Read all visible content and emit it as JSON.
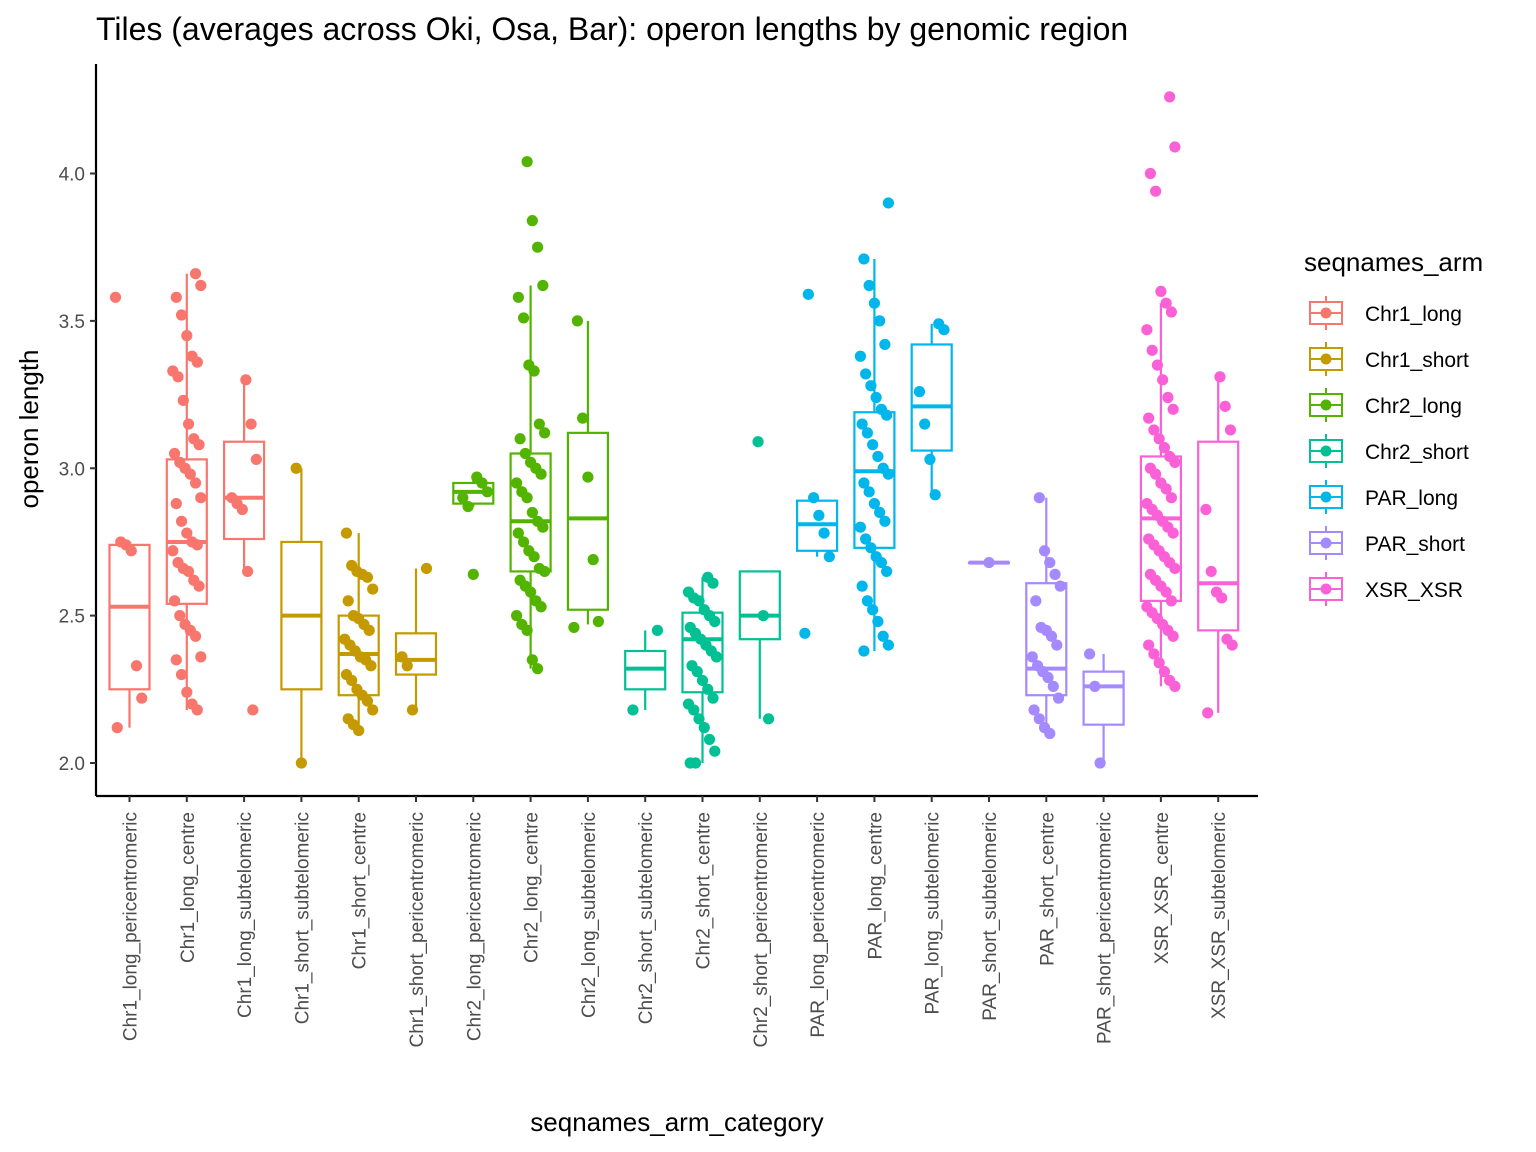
{
  "chart_data": {
    "type": "box",
    "title": "Tiles (averages across Oki, Osa, Bar): operon lengths by genomic region",
    "xlabel": "seqnames_arm_category",
    "ylabel": "operon length",
    "ylim": [
      1.89,
      4.36
    ],
    "yticks": [
      "2.0",
      "2.5",
      "3.0",
      "3.5",
      "4.0"
    ],
    "grid": false,
    "legend": {
      "title": "seqnames_arm",
      "position": "right",
      "entries": [
        {
          "name": "Chr1_long",
          "color": "#F8766D"
        },
        {
          "name": "Chr1_short",
          "color": "#C49A00"
        },
        {
          "name": "Chr2_long",
          "color": "#53B400"
        },
        {
          "name": "Chr2_short",
          "color": "#00C094"
        },
        {
          "name": "PAR_long",
          "color": "#00B6EB"
        },
        {
          "name": "PAR_short",
          "color": "#A58AFF"
        },
        {
          "name": "XSR_XSR",
          "color": "#FB61D7"
        }
      ]
    },
    "categories": [
      {
        "label": "Chr1_long_pericentromeric",
        "group": "Chr1_long",
        "box": [
          2.25,
          2.53,
          2.74
        ],
        "whisker": [
          2.12,
          2.75
        ],
        "points": [
          3.58,
          2.75,
          2.74,
          2.72,
          2.33,
          2.22,
          2.12
        ]
      },
      {
        "label": "Chr1_long_centre",
        "group": "Chr1_long",
        "box": [
          2.54,
          2.75,
          3.03
        ],
        "whisker": [
          2.18,
          3.66
        ],
        "points": [
          3.66,
          3.62,
          3.58,
          3.52,
          3.45,
          3.38,
          3.36,
          3.33,
          3.31,
          3.23,
          3.15,
          3.1,
          3.08,
          3.05,
          3.02,
          3.0,
          2.98,
          2.95,
          2.9,
          2.88,
          2.82,
          2.78,
          2.75,
          2.74,
          2.72,
          2.68,
          2.66,
          2.65,
          2.62,
          2.6,
          2.55,
          2.5,
          2.47,
          2.45,
          2.43,
          2.36,
          2.35,
          2.3,
          2.24,
          2.2,
          2.18
        ]
      },
      {
        "label": "Chr1_long_subtelomeric",
        "group": "Chr1_long",
        "box": [
          2.76,
          2.9,
          3.09
        ],
        "whisker": [
          2.64,
          3.3
        ],
        "points": [
          3.3,
          3.15,
          3.03,
          2.9,
          2.88,
          2.86,
          2.65,
          2.18
        ]
      },
      {
        "label": "Chr1_short_subtelomeric",
        "group": "Chr1_short",
        "box": [
          2.25,
          2.5,
          2.75
        ],
        "whisker": [
          2.0,
          3.0
        ],
        "points": [
          3.0,
          2.0
        ]
      },
      {
        "label": "Chr1_short_centre",
        "group": "Chr1_short",
        "box": [
          2.23,
          2.37,
          2.5
        ],
        "whisker": [
          2.11,
          2.78
        ],
        "points": [
          2.78,
          2.67,
          2.65,
          2.64,
          2.63,
          2.59,
          2.55,
          2.5,
          2.49,
          2.47,
          2.45,
          2.42,
          2.4,
          2.38,
          2.36,
          2.35,
          2.33,
          2.3,
          2.28,
          2.25,
          2.23,
          2.21,
          2.18,
          2.15,
          2.13,
          2.11
        ]
      },
      {
        "label": "Chr1_short_pericentromeric",
        "group": "Chr1_short",
        "box": [
          2.3,
          2.35,
          2.44
        ],
        "whisker": [
          2.18,
          2.66
        ],
        "points": [
          2.66,
          2.36,
          2.33,
          2.18
        ]
      },
      {
        "label": "Chr2_long_pericentromeric",
        "group": "Chr2_long",
        "box": [
          2.88,
          2.92,
          2.95
        ],
        "whisker": [
          2.87,
          2.97
        ],
        "points": [
          2.97,
          2.95,
          2.92,
          2.9,
          2.87,
          2.64
        ]
      },
      {
        "label": "Chr2_long_centre",
        "group": "Chr2_long",
        "box": [
          2.65,
          2.82,
          3.05
        ],
        "whisker": [
          2.32,
          3.62
        ],
        "points": [
          4.04,
          3.84,
          3.75,
          3.62,
          3.58,
          3.51,
          3.35,
          3.33,
          3.15,
          3.12,
          3.1,
          3.05,
          3.02,
          3.0,
          2.98,
          2.95,
          2.92,
          2.9,
          2.85,
          2.82,
          2.8,
          2.78,
          2.75,
          2.72,
          2.7,
          2.66,
          2.65,
          2.62,
          2.6,
          2.58,
          2.55,
          2.53,
          2.5,
          2.47,
          2.45,
          2.35,
          2.32
        ]
      },
      {
        "label": "Chr2_long_subtelomeric",
        "group": "Chr2_long",
        "box": [
          2.52,
          2.83,
          3.12
        ],
        "whisker": [
          2.47,
          3.5
        ],
        "points": [
          3.5,
          3.17,
          2.97,
          2.69,
          2.48,
          2.46
        ]
      },
      {
        "label": "Chr2_short_subtelomeric",
        "group": "Chr2_short",
        "box": [
          2.25,
          2.32,
          2.38
        ],
        "whisker": [
          2.18,
          2.45
        ],
        "points": [
          2.45,
          2.18
        ]
      },
      {
        "label": "Chr2_short_centre",
        "group": "Chr2_short",
        "box": [
          2.24,
          2.42,
          2.51
        ],
        "whisker": [
          2.0,
          2.63
        ],
        "points": [
          2.63,
          2.61,
          2.58,
          2.56,
          2.55,
          2.52,
          2.5,
          2.48,
          2.46,
          2.44,
          2.42,
          2.4,
          2.38,
          2.36,
          2.33,
          2.31,
          2.28,
          2.25,
          2.22,
          2.2,
          2.18,
          2.15,
          2.12,
          2.08,
          2.04,
          2.0,
          2.0
        ]
      },
      {
        "label": "Chr2_short_pericentromeric",
        "group": "Chr2_short",
        "box": [
          2.42,
          2.5,
          2.65
        ],
        "whisker": [
          2.15,
          2.65
        ],
        "points": [
          3.09,
          2.5,
          2.15
        ]
      },
      {
        "label": "PAR_long_pericentromeric",
        "group": "PAR_long",
        "box": [
          2.72,
          2.81,
          2.89
        ],
        "whisker": [
          2.7,
          2.9
        ],
        "points": [
          3.59,
          2.9,
          2.84,
          2.78,
          2.7,
          2.44
        ]
      },
      {
        "label": "PAR_long_centre",
        "group": "PAR_long",
        "box": [
          2.73,
          2.99,
          3.19
        ],
        "whisker": [
          2.38,
          3.71
        ],
        "points": [
          3.9,
          3.71,
          3.62,
          3.56,
          3.5,
          3.42,
          3.38,
          3.32,
          3.28,
          3.24,
          3.2,
          3.18,
          3.15,
          3.12,
          3.08,
          3.04,
          3.0,
          2.98,
          2.95,
          2.92,
          2.88,
          2.85,
          2.82,
          2.8,
          2.76,
          2.73,
          2.7,
          2.68,
          2.65,
          2.6,
          2.55,
          2.52,
          2.48,
          2.43,
          2.4,
          2.38
        ]
      },
      {
        "label": "PAR_long_subtelomeric",
        "group": "PAR_long",
        "box": [
          3.06,
          3.21,
          3.42
        ],
        "whisker": [
          2.91,
          3.49
        ],
        "points": [
          3.49,
          3.47,
          3.26,
          3.15,
          3.03,
          2.91
        ]
      },
      {
        "label": "PAR_short_subtelomeric",
        "group": "PAR_short",
        "box": [
          2.68,
          2.68,
          2.68
        ],
        "whisker": [
          2.68,
          2.68
        ],
        "points": [
          2.68
        ]
      },
      {
        "label": "PAR_short_centre",
        "group": "PAR_short",
        "box": [
          2.23,
          2.32,
          2.61
        ],
        "whisker": [
          2.1,
          2.9
        ],
        "points": [
          2.9,
          2.72,
          2.68,
          2.64,
          2.6,
          2.55,
          2.46,
          2.45,
          2.43,
          2.4,
          2.36,
          2.33,
          2.31,
          2.29,
          2.26,
          2.22,
          2.18,
          2.15,
          2.12,
          2.1
        ]
      },
      {
        "label": "PAR_short_pericentromeric",
        "group": "PAR_short",
        "box": [
          2.13,
          2.26,
          2.31
        ],
        "whisker": [
          2.0,
          2.37
        ],
        "points": [
          2.37,
          2.26,
          2.0
        ]
      },
      {
        "label": "XSR_XSR_centre",
        "group": "XSR_XSR",
        "box": [
          2.55,
          2.83,
          3.04
        ],
        "whisker": [
          2.26,
          3.56
        ],
        "points": [
          4.26,
          4.09,
          4.0,
          3.94,
          3.6,
          3.56,
          3.53,
          3.47,
          3.4,
          3.35,
          3.3,
          3.24,
          3.2,
          3.17,
          3.13,
          3.1,
          3.07,
          3.04,
          3.02,
          3.0,
          2.98,
          2.95,
          2.93,
          2.9,
          2.88,
          2.86,
          2.84,
          2.82,
          2.8,
          2.78,
          2.76,
          2.74,
          2.72,
          2.7,
          2.68,
          2.66,
          2.64,
          2.62,
          2.6,
          2.58,
          2.55,
          2.53,
          2.51,
          2.49,
          2.47,
          2.45,
          2.43,
          2.4,
          2.37,
          2.34,
          2.31,
          2.28,
          2.26
        ]
      },
      {
        "label": "XSR_XSR_subtelomeric",
        "group": "XSR_XSR",
        "box": [
          2.45,
          2.61,
          3.09
        ],
        "whisker": [
          2.17,
          3.31
        ],
        "points": [
          3.31,
          3.21,
          3.13,
          2.86,
          2.65,
          2.58,
          2.56,
          2.42,
          2.4,
          2.17
        ]
      }
    ]
  }
}
